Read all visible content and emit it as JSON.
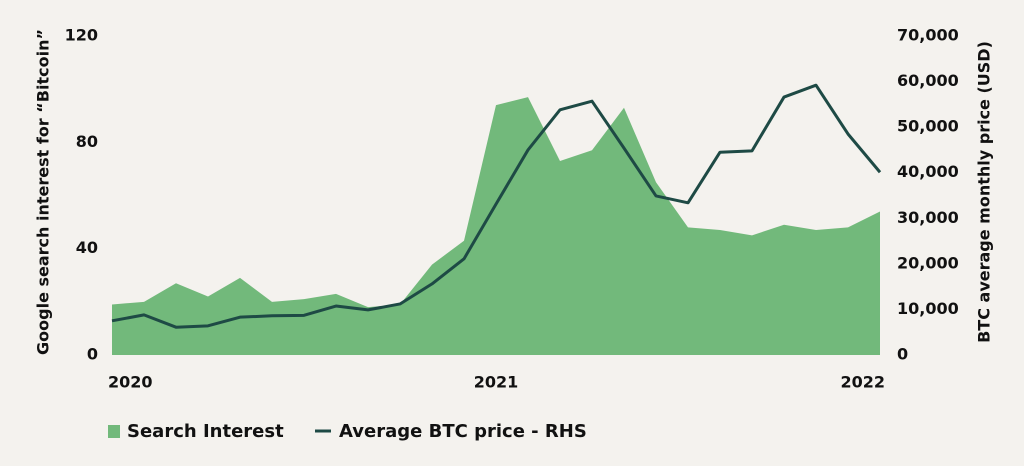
{
  "chart_data": {
    "type": "area-line",
    "x": [
      0,
      1,
      2,
      3,
      4,
      5,
      6,
      7,
      8,
      9,
      10,
      11,
      12,
      13,
      14,
      15,
      16,
      17,
      18,
      19,
      20,
      21,
      22,
      23,
      24
    ],
    "xlim": [
      0,
      24
    ],
    "xticks": [
      {
        "value": 0,
        "label": "2020"
      },
      {
        "value": 12,
        "label": "2021"
      },
      {
        "value": 24,
        "label": "2022"
      }
    ],
    "ylabel": "Google search interest for “Bitcoin”",
    "y2label": "BTC average monthly price (USD)",
    "ylim": [
      0,
      120
    ],
    "yticks": [
      0,
      40,
      80,
      120
    ],
    "y2lim": [
      0,
      70000
    ],
    "y2ticks": [
      0,
      {
        "value": 10000,
        "label": "10,000"
      },
      {
        "value": 20000,
        "label": "20,000"
      },
      {
        "value": 30000,
        "label": "30,000"
      },
      {
        "value": 40000,
        "label": "40,000"
      },
      {
        "value": 50000,
        "label": "50,000"
      },
      {
        "value": 60000,
        "label": "60,000"
      },
      {
        "value": 70000,
        "label": "70,000"
      }
    ],
    "series": [
      {
        "name": "Search Interest",
        "kind": "area",
        "color": "#72b97b",
        "values": [
          19,
          20,
          27,
          22,
          29,
          20,
          21,
          23,
          18,
          19,
          34,
          43,
          94,
          97,
          73,
          77,
          93,
          65,
          48,
          47,
          45,
          49,
          47,
          48,
          54
        ]
      },
      {
        "name": "Average BTC price - RHS",
        "kind": "line",
        "axis": "y2",
        "color": "#1e4a45",
        "values": [
          7500,
          8800,
          6100,
          6400,
          8300,
          8600,
          8700,
          10750,
          9900,
          11200,
          15600,
          21100,
          33100,
          45000,
          53800,
          55700,
          45400,
          34900,
          33400,
          44500,
          44800,
          56600,
          59200,
          48500,
          40100
        ]
      }
    ]
  }
}
